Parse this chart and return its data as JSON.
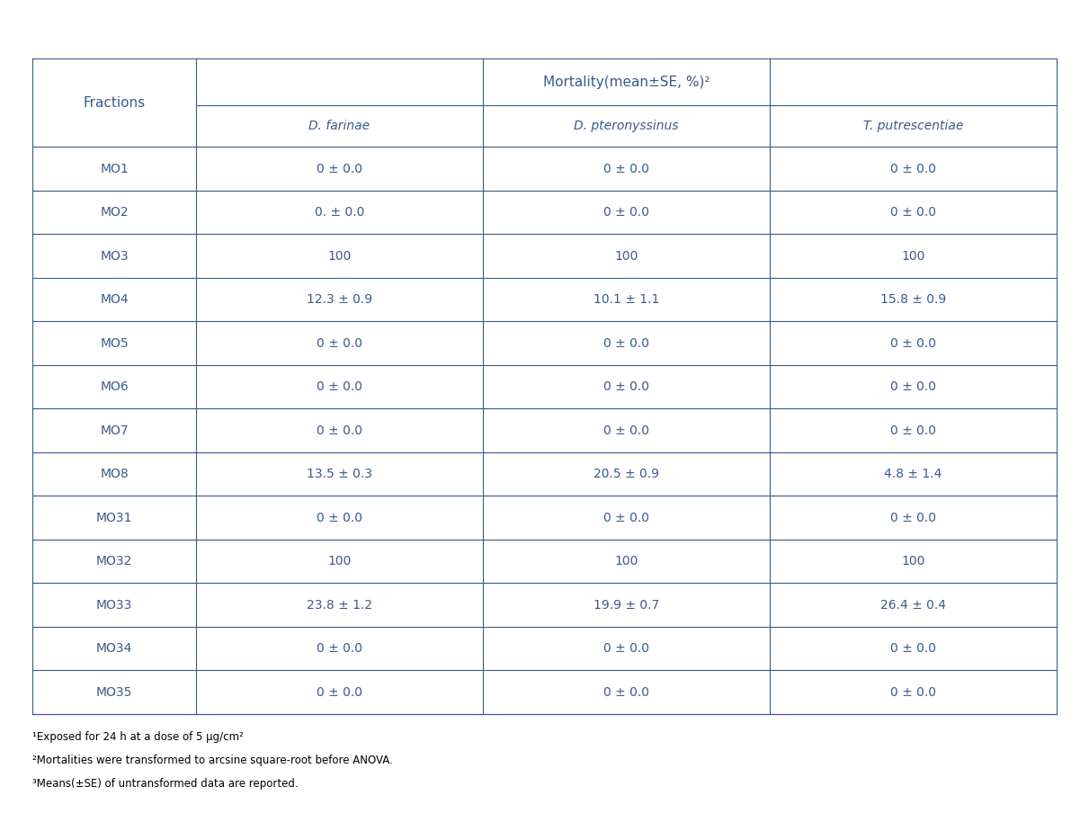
{
  "title": "Mortality(mean±SE, %)²",
  "col_headers": [
    "D. farinae",
    "D. pteronyssinus",
    "T. putrescentiae"
  ],
  "row_labels": [
    "MO1",
    "MO2",
    "MO3",
    "MO4",
    "MO5",
    "MO6",
    "MO7",
    "MO8",
    "MO31",
    "MO32",
    "MO33",
    "MO34",
    "MO35"
  ],
  "data": [
    [
      "0 ± 0.0",
      "0 ± 0.0",
      "0 ± 0.0"
    ],
    [
      "0. ± 0.0",
      "0 ± 0.0",
      "0 ± 0.0"
    ],
    [
      "100",
      "100",
      "100"
    ],
    [
      "12.3 ± 0.9",
      "10.1 ± 1.1",
      "15.8 ± 0.9"
    ],
    [
      "0 ± 0.0",
      "0 ± 0.0",
      "0 ± 0.0"
    ],
    [
      "0 ± 0.0",
      "0 ± 0.0",
      "0 ± 0.0"
    ],
    [
      "0 ± 0.0",
      "0 ± 0.0",
      "0 ± 0.0"
    ],
    [
      "13.5 ± 0.3",
      "20.5 ± 0.9",
      "4.8 ± 1.4"
    ],
    [
      "0 ± 0.0",
      "0 ± 0.0",
      "0 ± 0.0"
    ],
    [
      "100",
      "100",
      "100"
    ],
    [
      "23.8 ± 1.2",
      "19.9 ± 0.7",
      "26.4 ± 0.4"
    ],
    [
      "0 ± 0.0",
      "0 ± 0.0",
      "0 ± 0.0"
    ],
    [
      "0 ± 0.0",
      "0 ± 0.0",
      "0 ± 0.0"
    ]
  ],
  "footnotes": [
    "¹Exposed for 24 h at a dose of 5 μg/cm²",
    "²Mortalities were transformed to arcsine square-root before ANOVA.",
    "³Means(±SE) of untransformed data are reported."
  ],
  "text_color": "#3a5a8c",
  "line_color": "#3a5a8c",
  "bg_color": "#ffffff",
  "header_italic_cols": true
}
